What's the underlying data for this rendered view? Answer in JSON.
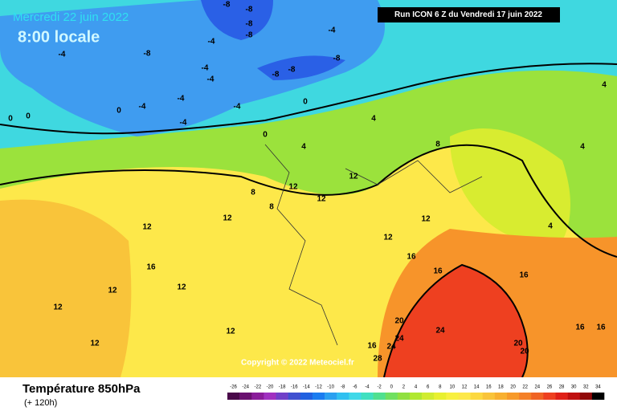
{
  "header": {
    "date": "Mercredi 22 juin 2022",
    "time": "8:00 locale",
    "run": "Run ICON 6 Z du Vendredi 17 juin 2022",
    "copyright": "Copyright © 2022 Meteociel.fr"
  },
  "footer": {
    "title": "Température 850hPa",
    "lead": "(+ 120h)"
  },
  "legend": {
    "labels": [
      -26,
      -24,
      -22,
      -20,
      -18,
      -16,
      -14,
      -12,
      -10,
      -8,
      -6,
      -4,
      -2,
      0,
      2,
      4,
      6,
      8,
      10,
      12,
      14,
      16,
      18,
      20,
      22,
      24,
      26,
      28,
      30,
      32,
      34
    ],
    "colors": [
      "#4a0a4a",
      "#6a1070",
      "#8a1c9a",
      "#a030c0",
      "#7040c8",
      "#4050d0",
      "#2060e0",
      "#1a7cf0",
      "#2aa0f0",
      "#30c0f0",
      "#40d8e8",
      "#40e0c0",
      "#50e090",
      "#70e060",
      "#90e040",
      "#b0e830",
      "#d0ec30",
      "#e8f030",
      "#f8f040",
      "#fde84a",
      "#fcd840",
      "#f9c43a",
      "#f8b030",
      "#f79a2a",
      "#f48028",
      "#f06424",
      "#ee4020",
      "#e02018",
      "#c01010",
      "#900808",
      "#000000"
    ]
  },
  "map_labels": [
    "-8",
    "-8",
    "-8",
    "-8",
    "-4",
    "-4",
    "-8",
    "-8",
    "-8",
    "-8",
    "-4",
    "-4",
    "-4",
    "-4",
    "-4",
    "-4",
    "-4",
    "0",
    "0",
    "0",
    "0",
    "0",
    "4",
    "4",
    "4",
    "4",
    "4",
    "8",
    "8",
    "8",
    "12",
    "12",
    "12",
    "12",
    "12",
    "12",
    "12",
    "16",
    "16",
    "16",
    "12",
    "12",
    "12",
    "12",
    "16",
    "20",
    "24",
    "24",
    "20",
    "20",
    "16",
    "16",
    "28",
    "16",
    "24",
    "12"
  ]
}
